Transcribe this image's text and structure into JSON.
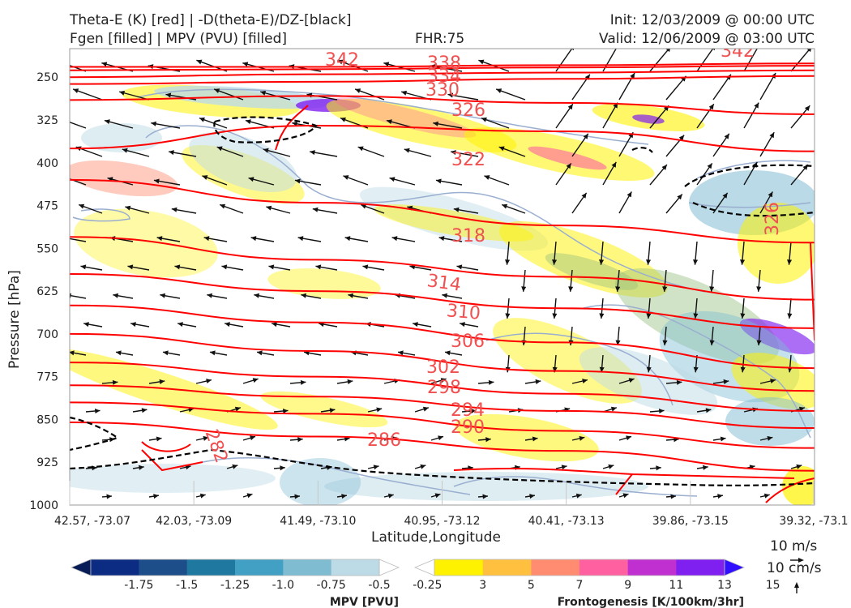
{
  "header": {
    "line1_left": "Theta-E (K) [red] | -D(theta-E)/DZ-[black]",
    "line2_left": "Fgen [filled] | MPV (PVU) [filled]",
    "fhr": "FHR:75",
    "init": "Init: 12/03/2009 @ 00:00 UTC",
    "valid": "Valid: 12/06/2009 @ 03:00 UTC"
  },
  "colors": {
    "theta_e": "#ff0000",
    "theta_label": "#f05050",
    "stability": "#000000",
    "mpv_outline": "#9aaed0",
    "arrow": "#111111"
  },
  "chart_data": {
    "type": "cross-section",
    "xlabel": "Latitude,Longitude",
    "ylabel": "Pressure [hPa]",
    "ylim": [
      1000,
      200
    ],
    "x_ticks": [
      "42.57, -73.07",
      "42.03, -73.09",
      "41.49, -73.10",
      "40.95, -73.12",
      "40.41, -73.13",
      "39.86, -73.15",
      "39.32, -73.1"
    ],
    "y_ticks": [
      250,
      325,
      400,
      475,
      550,
      625,
      700,
      775,
      850,
      925,
      1000
    ],
    "theta_e_labels": [
      342,
      338,
      334,
      330,
      326,
      322,
      318,
      314,
      310,
      306,
      302,
      298,
      294,
      290,
      286,
      282,
      342,
      326
    ],
    "theta_e_contours": [
      {
        "value": 342,
        "p": [
          232,
          232,
          229,
          226
        ]
      },
      {
        "value": 338,
        "p": [
          238,
          236,
          233,
          230
        ]
      },
      {
        "value": 334,
        "p": [
          250,
          245,
          242,
          238
        ]
      },
      {
        "value": 330,
        "p": [
          262,
          258,
          253,
          248
        ]
      },
      {
        "value": 326,
        "p": [
          290,
          283,
          295,
          315
        ]
      },
      {
        "value": 322,
        "p": [
          375,
          335,
          345,
          380
        ]
      },
      {
        "value": 318,
        "p": [
          430,
          470,
          510,
          540
        ]
      },
      {
        "value": 314,
        "p": [
          530,
          570,
          600,
          640
        ]
      },
      {
        "value": 310,
        "p": [
          595,
          625,
          655,
          690
        ]
      },
      {
        "value": 306,
        "p": [
          650,
          680,
          715,
          760
        ]
      },
      {
        "value": 302,
        "p": [
          700,
          730,
          765,
          800
        ]
      },
      {
        "value": 298,
        "p": [
          750,
          775,
          805,
          835
        ]
      },
      {
        "value": 294,
        "p": [
          790,
          810,
          835,
          865
        ]
      },
      {
        "value": 290,
        "p": [
          820,
          840,
          870,
          900
        ]
      },
      {
        "value": 286,
        "p": [
          855,
          880,
          905,
          940
        ]
      }
    ],
    "colorbars": [
      {
        "title": "MPV [PVU]",
        "tick_labels": [
          "-1.75",
          "-1.5",
          "-1.25",
          "-1.0",
          "-0.75",
          "-0.5",
          "-0.25"
        ],
        "colors": [
          "#081d58",
          "#0c2c84",
          "#1d4e89",
          "#1f78a0",
          "#41a0c4",
          "#7fbcd2",
          "#bddbe6",
          "#ffffff"
        ]
      },
      {
        "title": "Frontogenesis [K/100km/3hr]",
        "tick_labels": [
          "3",
          "5",
          "7",
          "9",
          "11",
          "13",
          "15"
        ],
        "colors": [
          "#ffffff",
          "#fff200",
          "#ffc040",
          "#ff8c70",
          "#ff60a0",
          "#c030d0",
          "#8020f0",
          "#3010ff"
        ]
      }
    ],
    "vector_reference": [
      "10 m/s",
      "10 cm/s"
    ]
  }
}
